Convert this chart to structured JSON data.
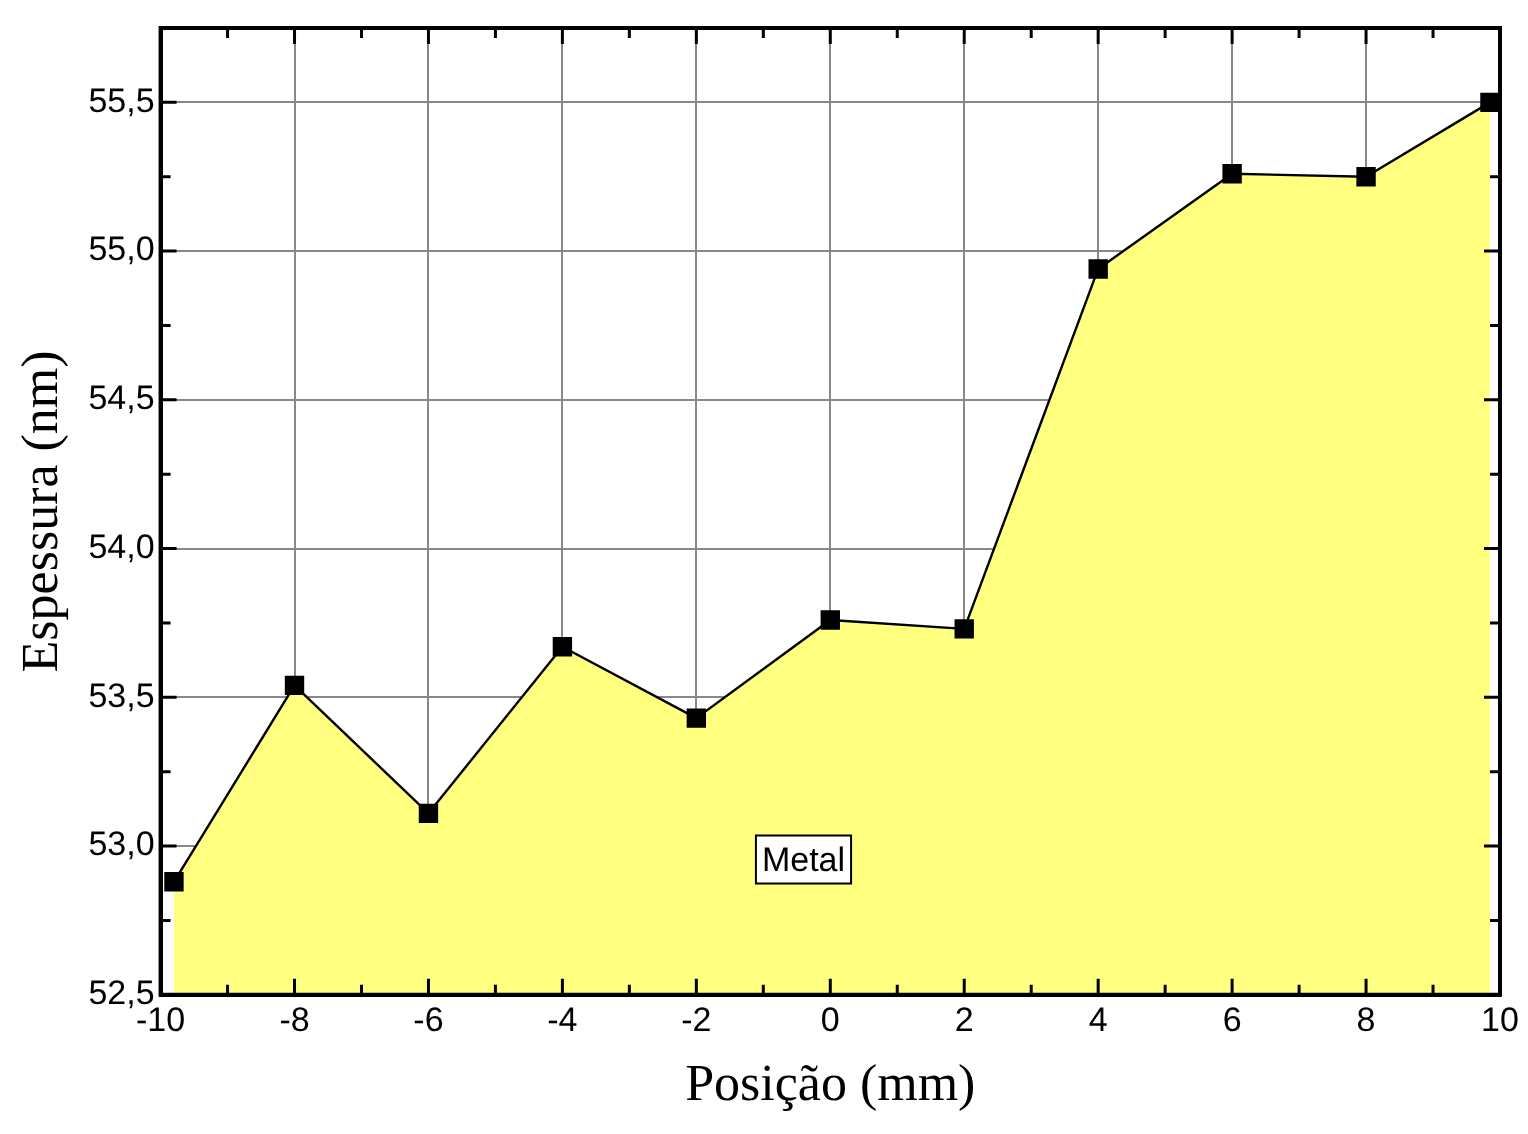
{
  "chart_data": {
    "type": "area",
    "xlabel": "Posição (mm)",
    "ylabel": "Espessura (nm)",
    "x": [
      -9.8,
      -8,
      -6,
      -4,
      -2,
      0,
      2,
      4,
      6,
      8,
      9.85
    ],
    "series": [
      {
        "color": "#ffff80",
        "values": [
          52.88,
          53.54,
          53.11,
          53.67,
          53.43,
          53.76,
          53.73,
          54.94,
          55.26,
          55.25,
          55.5
        ]
      }
    ],
    "xlim": [
      -10,
      10
    ],
    "xticks": [
      -10,
      {
        "value": -9,
        "label": null
      },
      -8,
      {
        "value": -7,
        "label": null
      },
      -6,
      {
        "value": -5,
        "label": null
      },
      -4,
      {
        "value": -3,
        "label": null
      },
      -2,
      {
        "value": -1,
        "label": null
      },
      0,
      {
        "value": 1,
        "label": null
      },
      2,
      {
        "value": 3,
        "label": null
      },
      4,
      {
        "value": 5,
        "label": null
      },
      6,
      {
        "value": 7,
        "label": null
      },
      8,
      {
        "value": 9,
        "label": null
      },
      10
    ],
    "ylim": [
      52.5,
      55.75
    ],
    "yticks": [
      {
        "value": 52.5,
        "label": "52,5"
      },
      {
        "value": 52.75,
        "label": null
      },
      {
        "value": 53,
        "label": "53,0"
      },
      {
        "value": 53.25,
        "label": null
      },
      {
        "value": 53.5,
        "label": "53,5"
      },
      {
        "value": 53.75,
        "label": null
      },
      {
        "value": 54,
        "label": "54,0"
      },
      {
        "value": 54.25,
        "label": null
      },
      {
        "value": 54.5,
        "label": "54,5"
      },
      {
        "value": 54.75,
        "label": null
      },
      {
        "value": 55,
        "label": "55,0"
      },
      {
        "value": 55.25,
        "label": null
      },
      {
        "value": 55.5,
        "label": "55,5"
      }
    ],
    "annotations": [
      "Metal"
    ],
    "grid": true,
    "legend": false,
    "marker": "square",
    "line_style": "solid"
  }
}
